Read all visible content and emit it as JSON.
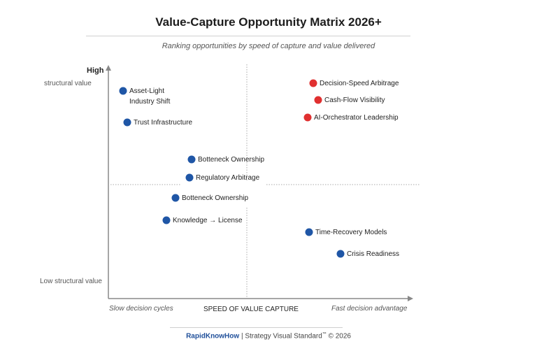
{
  "title": "Value-Capture Opportunity Matrix 2026+",
  "subtitle": "Ranking opportunities by speed of capture and value delivered",
  "colors": {
    "blue": "#1f56a6",
    "red": "#e03030",
    "axis": "#888888"
  },
  "y_axis": {
    "high": "High",
    "high_sub": "structural value",
    "low": "Low structural value"
  },
  "x_axis": {
    "left": "Slow decision cycles",
    "title": "SPEED OF VALUE CAPTURE",
    "right": "Fast decision advantage"
  },
  "points": [
    {
      "label": "Asset-Light",
      "label2": "Industry Shift",
      "color": "blue"
    },
    {
      "label": "Trust Infrastructure",
      "color": "blue"
    },
    {
      "label": "Botteneck Ownership",
      "color": "blue"
    },
    {
      "label": "Regulatory Arbitrage",
      "color": "blue"
    },
    {
      "label": "Botteneck Ownership",
      "color": "blue"
    },
    {
      "label": "Knowledge → License",
      "color": "blue"
    },
    {
      "label": "Decision-Speed Arbitrage",
      "color": "red"
    },
    {
      "label": "Cash-Flow Visibility",
      "color": "red"
    },
    {
      "label": "AI-Orchestrator Leadership",
      "color": "red"
    },
    {
      "label": "Time-Recovery Models",
      "color": "blue"
    },
    {
      "label": "Crisis Readiness",
      "color": "blue"
    }
  ],
  "footer": {
    "brand": "RapidKnowHow",
    "text": " | Strategy Visual Standard",
    "tm": "™",
    "copy": " © 2026"
  }
}
